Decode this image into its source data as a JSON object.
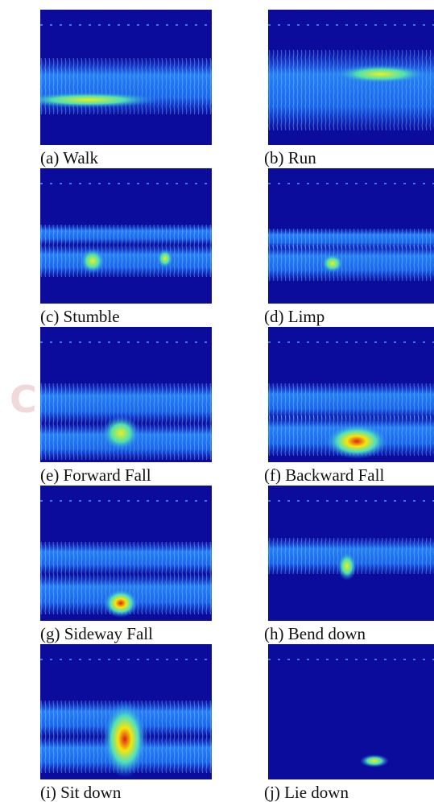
{
  "watermark": "C",
  "figure": {
    "panels": [
      {
        "caption": "(a) Walk"
      },
      {
        "caption": "(b) Run"
      },
      {
        "caption": "(c) Stumble"
      },
      {
        "caption": "(d) Limp"
      },
      {
        "caption": "(e) Forward Fall"
      },
      {
        "caption": "(f) Backward Fall"
      },
      {
        "caption": "(g) Sideway Fall"
      },
      {
        "caption": "(h) Bend down"
      },
      {
        "caption": "(i) Sit down"
      },
      {
        "caption": "(j) Lie down"
      }
    ]
  }
}
